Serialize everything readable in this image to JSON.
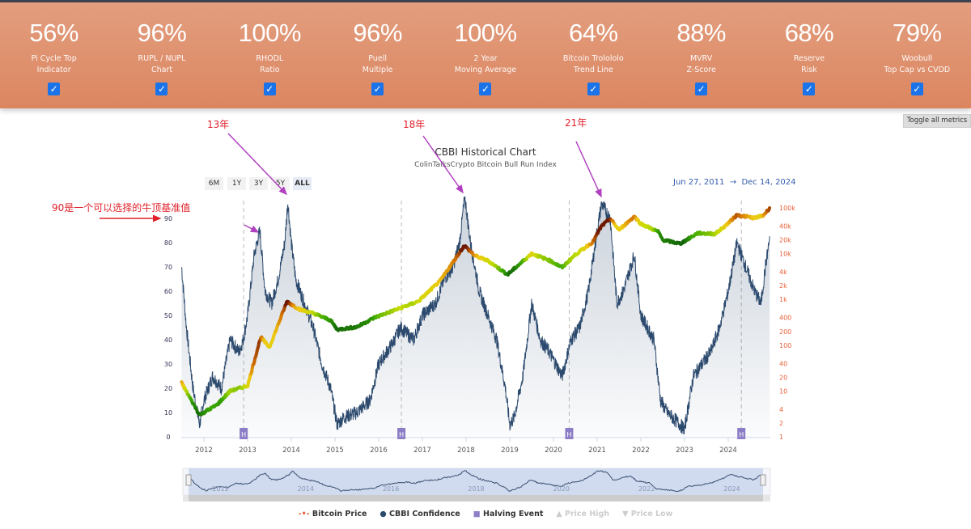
{
  "metrics": [
    {
      "value": "56%",
      "label1": "Pi Cycle Top",
      "label2": "Indicator"
    },
    {
      "value": "96%",
      "label1": "RUPL / NUPL",
      "label2": "Chart"
    },
    {
      "value": "100%",
      "label1": "RHODL",
      "label2": "Ratio"
    },
    {
      "value": "96%",
      "label1": "Puell",
      "label2": "Multiple"
    },
    {
      "value": "100%",
      "label1": "2 Year",
      "label2": "Moving Average"
    },
    {
      "value": "64%",
      "label1": "Bitcoin Trolololo",
      "label2": "Trend Line"
    },
    {
      "value": "88%",
      "label1": "MVRV",
      "label2": "Z-Score"
    },
    {
      "value": "68%",
      "label1": "Reserve",
      "label2": "Risk"
    },
    {
      "value": "79%",
      "label1": "Woobull",
      "label2": "Top Cap vs CVDD"
    }
  ],
  "toggle_all": "Toggle all metrics",
  "annotations": {
    "a13": "13年",
    "a18": "18年",
    "a21": "21年",
    "a90": "90是一个可以选择的牛顶基准值"
  },
  "range_buttons": [
    "6M",
    "1Y",
    "3Y",
    "5Y",
    "ALL"
  ],
  "date_range": {
    "from": "Jun 27, 2011",
    "arrow": "→",
    "to": "Dec 14, 2024"
  },
  "halving_label": "H",
  "chart_data": {
    "type": "line",
    "title": "CBBI Historical Chart",
    "subtitle": "ColinTalksCrypto Bitcoin Bull Run Index",
    "left_ticks": [
      0,
      10,
      20,
      30,
      40,
      50,
      60,
      70,
      80,
      90
    ],
    "right_ticks": [
      "1",
      "2",
      "4",
      "10",
      "20",
      "40",
      "100",
      "200",
      "400",
      "1k",
      "2k",
      "4k",
      "10k",
      "20k",
      "40k",
      "100k"
    ],
    "right_tick_values": [
      1,
      2,
      4,
      10,
      20,
      40,
      100,
      200,
      400,
      1000,
      2000,
      4000,
      10000,
      20000,
      40000,
      100000
    ],
    "x_ticks": [
      "2012",
      "2013",
      "2014",
      "2015",
      "2016",
      "2017",
      "2018",
      "2019",
      "2020",
      "2021",
      "2022",
      "2023",
      "2024"
    ],
    "navigator_ticks": [
      "2012",
      "2014",
      "2016",
      "2018",
      "2020",
      "2022",
      "2024"
    ],
    "halvings": [
      2012.91,
      2016.52,
      2020.36,
      2024.3
    ],
    "cbbi": [
      [
        2011.49,
        70
      ],
      [
        2011.6,
        45
      ],
      [
        2011.75,
        20
      ],
      [
        2011.9,
        5
      ],
      [
        2012.0,
        15
      ],
      [
        2012.2,
        25
      ],
      [
        2012.4,
        20
      ],
      [
        2012.6,
        40
      ],
      [
        2012.8,
        35
      ],
      [
        2012.9,
        40
      ],
      [
        2013.0,
        50
      ],
      [
        2013.15,
        75
      ],
      [
        2013.28,
        85
      ],
      [
        2013.4,
        60
      ],
      [
        2013.55,
        55
      ],
      [
        2013.7,
        65
      ],
      [
        2013.85,
        80
      ],
      [
        2013.92,
        97
      ],
      [
        2014.0,
        80
      ],
      [
        2014.1,
        65
      ],
      [
        2014.3,
        55
      ],
      [
        2014.5,
        45
      ],
      [
        2014.7,
        30
      ],
      [
        2014.9,
        20
      ],
      [
        2015.05,
        5
      ],
      [
        2015.2,
        8
      ],
      [
        2015.5,
        10
      ],
      [
        2015.8,
        15
      ],
      [
        2016.0,
        30
      ],
      [
        2016.3,
        38
      ],
      [
        2016.5,
        45
      ],
      [
        2016.8,
        40
      ],
      [
        2017.0,
        50
      ],
      [
        2017.3,
        55
      ],
      [
        2017.5,
        65
      ],
      [
        2017.7,
        70
      ],
      [
        2017.85,
        80
      ],
      [
        2017.97,
        99
      ],
      [
        2018.1,
        80
      ],
      [
        2018.3,
        60
      ],
      [
        2018.5,
        50
      ],
      [
        2018.7,
        40
      ],
      [
        2018.9,
        20
      ],
      [
        2019.0,
        5
      ],
      [
        2019.1,
        8
      ],
      [
        2019.3,
        25
      ],
      [
        2019.5,
        55
      ],
      [
        2019.7,
        40
      ],
      [
        2019.9,
        35
      ],
      [
        2020.2,
        25
      ],
      [
        2020.4,
        40
      ],
      [
        2020.6,
        45
      ],
      [
        2020.8,
        60
      ],
      [
        2021.0,
        85
      ],
      [
        2021.1,
        96
      ],
      [
        2021.3,
        90
      ],
      [
        2021.45,
        55
      ],
      [
        2021.6,
        60
      ],
      [
        2021.85,
        75
      ],
      [
        2022.0,
        50
      ],
      [
        2022.3,
        40
      ],
      [
        2022.45,
        15
      ],
      [
        2022.6,
        10
      ],
      [
        2022.9,
        5
      ],
      [
        2023.0,
        3
      ],
      [
        2023.2,
        25
      ],
      [
        2023.4,
        30
      ],
      [
        2023.6,
        35
      ],
      [
        2023.8,
        45
      ],
      [
        2024.0,
        60
      ],
      [
        2024.2,
        80
      ],
      [
        2024.4,
        70
      ],
      [
        2024.6,
        60
      ],
      [
        2024.75,
        55
      ],
      [
        2024.85,
        70
      ],
      [
        2024.95,
        82
      ]
    ],
    "price": [
      [
        2011.49,
        15
      ],
      [
        2011.9,
        3
      ],
      [
        2012.3,
        5
      ],
      [
        2012.6,
        10
      ],
      [
        2013.0,
        13
      ],
      [
        2013.3,
        150
      ],
      [
        2013.5,
        90
      ],
      [
        2013.9,
        900
      ],
      [
        2014.2,
        600
      ],
      [
        2014.5,
        500
      ],
      [
        2014.9,
        350
      ],
      [
        2015.05,
        220
      ],
      [
        2015.5,
        250
      ],
      [
        2015.9,
        400
      ],
      [
        2016.5,
        650
      ],
      [
        2016.9,
        900
      ],
      [
        2017.4,
        2500
      ],
      [
        2017.96,
        15000
      ],
      [
        2018.2,
        9000
      ],
      [
        2018.5,
        7000
      ],
      [
        2018.95,
        3500
      ],
      [
        2019.5,
        10000
      ],
      [
        2019.9,
        7200
      ],
      [
        2020.2,
        5000
      ],
      [
        2020.5,
        9500
      ],
      [
        2020.9,
        18000
      ],
      [
        2021.1,
        40000
      ],
      [
        2021.3,
        58000
      ],
      [
        2021.5,
        33000
      ],
      [
        2021.85,
        65000
      ],
      [
        2022.0,
        45000
      ],
      [
        2022.4,
        30000
      ],
      [
        2022.5,
        20000
      ],
      [
        2022.9,
        16500
      ],
      [
        2023.3,
        28000
      ],
      [
        2023.7,
        27000
      ],
      [
        2023.95,
        42000
      ],
      [
        2024.2,
        70000
      ],
      [
        2024.6,
        60000
      ],
      [
        2024.8,
        68000
      ],
      [
        2024.95,
        100000
      ]
    ],
    "legend": [
      "Bitcoin Price",
      "CBBI Confidence",
      "Halving Event",
      "Price High",
      "Price Low"
    ],
    "colors": {
      "cbbi": "#2c4a6e",
      "halving": "#8f7fc8",
      "accent": "#e6623a"
    }
  }
}
